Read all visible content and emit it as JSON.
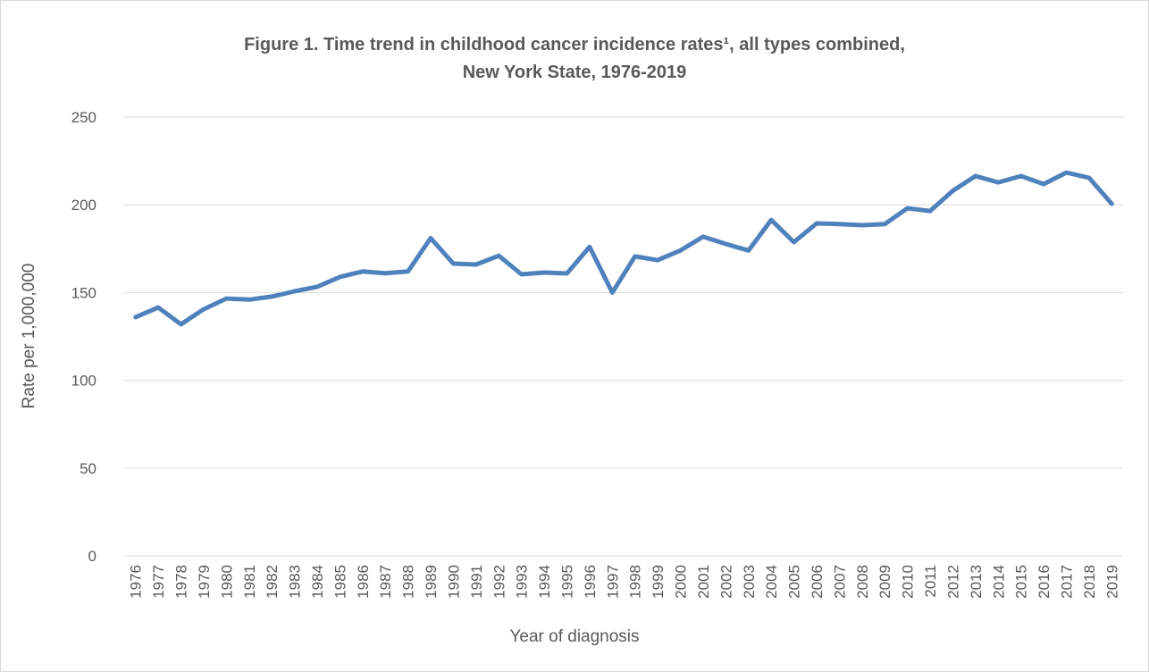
{
  "chart_data": {
    "type": "line",
    "title": [
      "Figure 1. Time trend in childhood cancer incidence rates¹, all types combined,",
      "New York State, 1976-2019"
    ],
    "x_label": "Year of diagnosis",
    "y_label": "Rate per 1,000,000",
    "categories": [
      "1976",
      "1977",
      "1978",
      "1979",
      "1980",
      "1981",
      "1982",
      "1983",
      "1984",
      "1985",
      "1986",
      "1987",
      "1988",
      "1989",
      "1990",
      "1991",
      "1992",
      "1993",
      "1994",
      "1995",
      "1996",
      "1997",
      "1998",
      "1999",
      "2000",
      "2001",
      "2002",
      "2003",
      "2004",
      "2005",
      "2006",
      "2007",
      "2008",
      "2009",
      "2010",
      "2011",
      "2012",
      "2013",
      "2014",
      "2015",
      "2016",
      "2017",
      "2018",
      "2019"
    ],
    "series": [
      {
        "name": "Rate",
        "color": "#4f81bd",
        "values": [
          136,
          141.5,
          131.9,
          140.5,
          146.6,
          146,
          147.7,
          150.7,
          153.3,
          158.9,
          162,
          161,
          162,
          181,
          166.5,
          166,
          171,
          160.4,
          161.4,
          160.9,
          176,
          150,
          170.6,
          168.5,
          174,
          181.8,
          177.7,
          174,
          191.4,
          178.7,
          189.4,
          189,
          188.4,
          189,
          198,
          196.5,
          208,
          216.4,
          212.8,
          216.4,
          211.8,
          218.4,
          215.4,
          200.6
        ]
      }
    ],
    "ylim": [
      0,
      250
    ],
    "yticks": [
      0,
      50,
      100,
      150,
      200,
      250
    ],
    "grid": true
  }
}
